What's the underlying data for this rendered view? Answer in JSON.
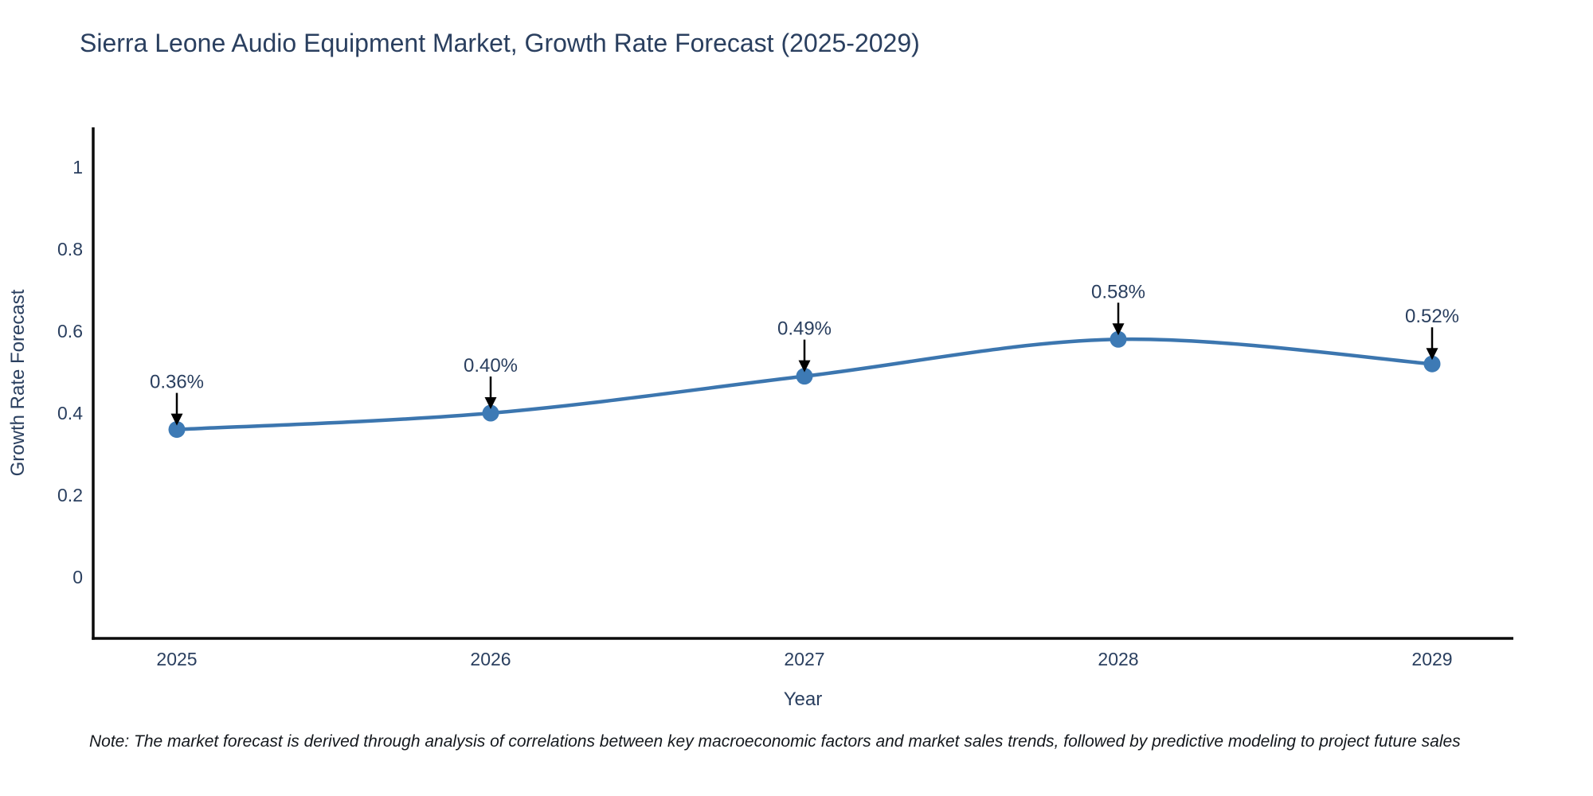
{
  "note": "Note: The market forecast is derived through analysis of correlations between key macroeconomic factors and market sales trends, followed by predictive modeling to project future sales",
  "chart_data": {
    "type": "line",
    "title": "Sierra Leone Audio Equipment Market, Growth Rate Forecast (2025-2029)",
    "xlabel": "Year",
    "ylabel": "Growth Rate Forecast",
    "categories": [
      "2025",
      "2026",
      "2027",
      "2028",
      "2029"
    ],
    "series": [
      {
        "name": "Growth Rate Forecast",
        "values": [
          0.36,
          0.4,
          0.49,
          0.58,
          0.52
        ]
      }
    ],
    "point_labels": [
      "0.36%",
      "0.40%",
      "0.49%",
      "0.58%",
      "0.52%"
    ],
    "yticks": [
      0,
      0.2,
      0.4,
      0.6,
      0.8,
      1
    ],
    "ylim": [
      -0.15,
      1.1
    ],
    "grid": false,
    "legend": "none",
    "smooth": true,
    "line_color": "#3c76af",
    "marker_color": "#3d7ab5",
    "arrow_color": "#000000",
    "text_color": "#2a3f5f"
  }
}
